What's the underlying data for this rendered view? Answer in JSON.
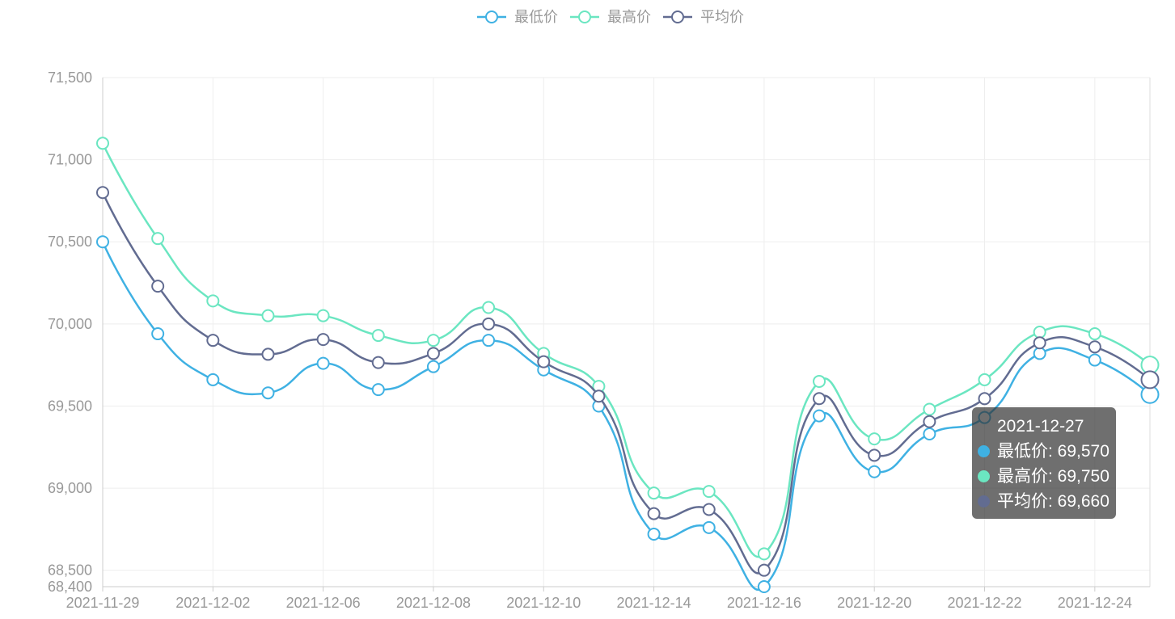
{
  "chart_data": {
    "type": "line",
    "categories": [
      "2021-11-29",
      "",
      "2021-12-02",
      "",
      "2021-12-06",
      "",
      "2021-12-08",
      "",
      "2021-12-10",
      "",
      "2021-12-14",
      "",
      "2021-12-16",
      "",
      "2021-12-20",
      "",
      "2021-12-22",
      "",
      "2021-12-24",
      "2021-12-27"
    ],
    "series": [
      {
        "name": "最低价",
        "color": "#3fb1e3",
        "values": [
          70500,
          69940,
          69660,
          69580,
          69760,
          69600,
          69740,
          69900,
          69720,
          69500,
          68720,
          68760,
          68400,
          69440,
          69100,
          69330,
          69430,
          69820,
          69780,
          69570
        ]
      },
      {
        "name": "最高价",
        "color": "#6be6c1",
        "values": [
          71100,
          70520,
          70140,
          70050,
          70050,
          69930,
          69900,
          70100,
          69820,
          69620,
          68970,
          68980,
          68600,
          69650,
          69300,
          69480,
          69660,
          69950,
          69940,
          69750
        ]
      },
      {
        "name": "平均价",
        "color": "#626c91",
        "values": [
          70800,
          70230,
          69900,
          69815,
          69905,
          69765,
          69820,
          70000,
          69770,
          69560,
          68845,
          68870,
          68500,
          69545,
          69200,
          69405,
          69545,
          69885,
          69860,
          69660
        ]
      }
    ],
    "ylim": [
      68400,
      71500
    ],
    "y_ticks": [
      68400,
      68500,
      69000,
      69500,
      70000,
      70500,
      71000,
      71500
    ],
    "y_tick_labels": [
      "68,400",
      "68,500",
      "69,000",
      "69,500",
      "70,000",
      "70,500",
      "71,000",
      "71,500"
    ],
    "smooth": true,
    "grid": true,
    "legend_position": "top-center"
  },
  "tooltip": {
    "rows": [
      "最低价: 69,570",
      "最高价: 69,750",
      "平均价: 69,660"
    ]
  }
}
